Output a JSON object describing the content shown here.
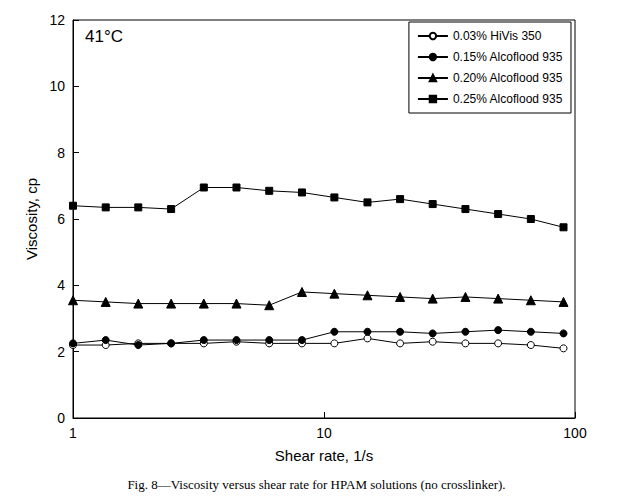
{
  "chart_data": {
    "type": "line",
    "caption": "Fig. 8—Viscosity versus shear rate for HPAM solutions (no crosslinker).",
    "annotation": "41°C",
    "x_label": "Shear rate, 1/s",
    "y_label": "Viscosity, cp",
    "log": "x",
    "xlim": [
      1,
      100
    ],
    "xticks": [
      1,
      10,
      100
    ],
    "ylim": [
      0,
      12
    ],
    "yticks": [
      0,
      2,
      4,
      6,
      8,
      10,
      12
    ],
    "grid": false,
    "legend": "top-right",
    "x": [
      1,
      1.35,
      1.82,
      2.46,
      3.32,
      4.48,
      6.05,
      8.17,
      11.0,
      14.9,
      20.1,
      27.1,
      36.6,
      49.4,
      66.7,
      90
    ],
    "series": [
      {
        "name": "0.03% HiVis 350",
        "color": "#000000",
        "marker": "open_circle",
        "values": [
          2.2,
          2.2,
          2.25,
          2.25,
          2.25,
          2.3,
          2.25,
          2.25,
          2.25,
          2.4,
          2.25,
          2.3,
          2.25,
          2.25,
          2.2,
          2.1
        ]
      },
      {
        "name": "0.15% Alcoflood 935",
        "color": "#000000",
        "marker": "circle",
        "values": [
          2.25,
          2.35,
          2.2,
          2.25,
          2.35,
          2.35,
          2.35,
          2.35,
          2.6,
          2.6,
          2.6,
          2.55,
          2.6,
          2.65,
          2.6,
          2.55
        ]
      },
      {
        "name": "0.20% Alcoflood 935",
        "color": "#000000",
        "marker": "triangle",
        "values": [
          3.55,
          3.5,
          3.45,
          3.45,
          3.45,
          3.45,
          3.4,
          3.8,
          3.75,
          3.7,
          3.65,
          3.6,
          3.65,
          3.6,
          3.55,
          3.5
        ]
      },
      {
        "name": "0.25% Alcoflood 935",
        "color": "#000000",
        "marker": "square",
        "values": [
          6.4,
          6.35,
          6.35,
          6.3,
          6.95,
          6.95,
          6.85,
          6.8,
          6.65,
          6.5,
          6.6,
          6.45,
          6.3,
          6.15,
          6.0,
          5.75
        ]
      }
    ]
  }
}
